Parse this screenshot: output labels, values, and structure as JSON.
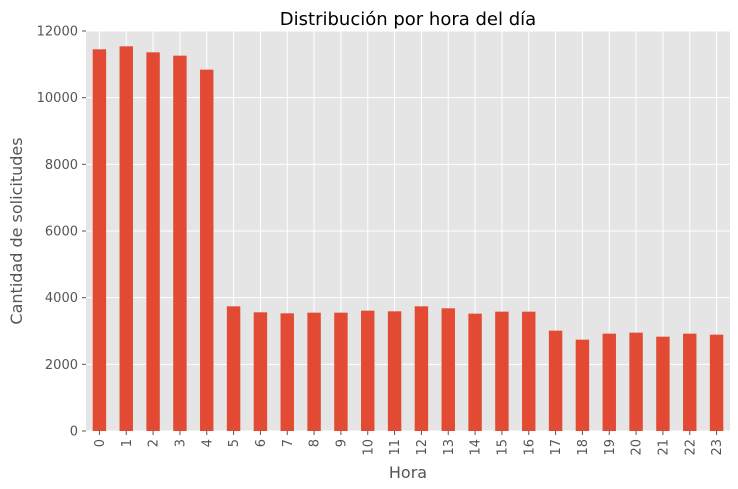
{
  "chart_data": {
    "type": "bar",
    "title": "Distribución por hora del día",
    "xlabel": "Hora",
    "ylabel": "Cantidad de solicitudes",
    "categories": [
      "0",
      "1",
      "2",
      "3",
      "4",
      "5",
      "6",
      "7",
      "8",
      "9",
      "10",
      "11",
      "12",
      "13",
      "14",
      "15",
      "16",
      "17",
      "18",
      "19",
      "20",
      "21",
      "22",
      "23"
    ],
    "values": [
      11450,
      11540,
      11360,
      11260,
      10840,
      3740,
      3560,
      3530,
      3550,
      3550,
      3610,
      3590,
      3740,
      3680,
      3520,
      3580,
      3580,
      3010,
      2740,
      2920,
      2950,
      2830,
      2920,
      2890
    ],
    "yticks": [
      "0",
      "2000",
      "4000",
      "6000",
      "8000",
      "10000",
      "12000"
    ],
    "ylim": [
      0,
      12000
    ],
    "grid": true,
    "bar_color": "#E24A33",
    "background_color": "#E5E5E5",
    "grid_color": "#FFFFFF"
  }
}
